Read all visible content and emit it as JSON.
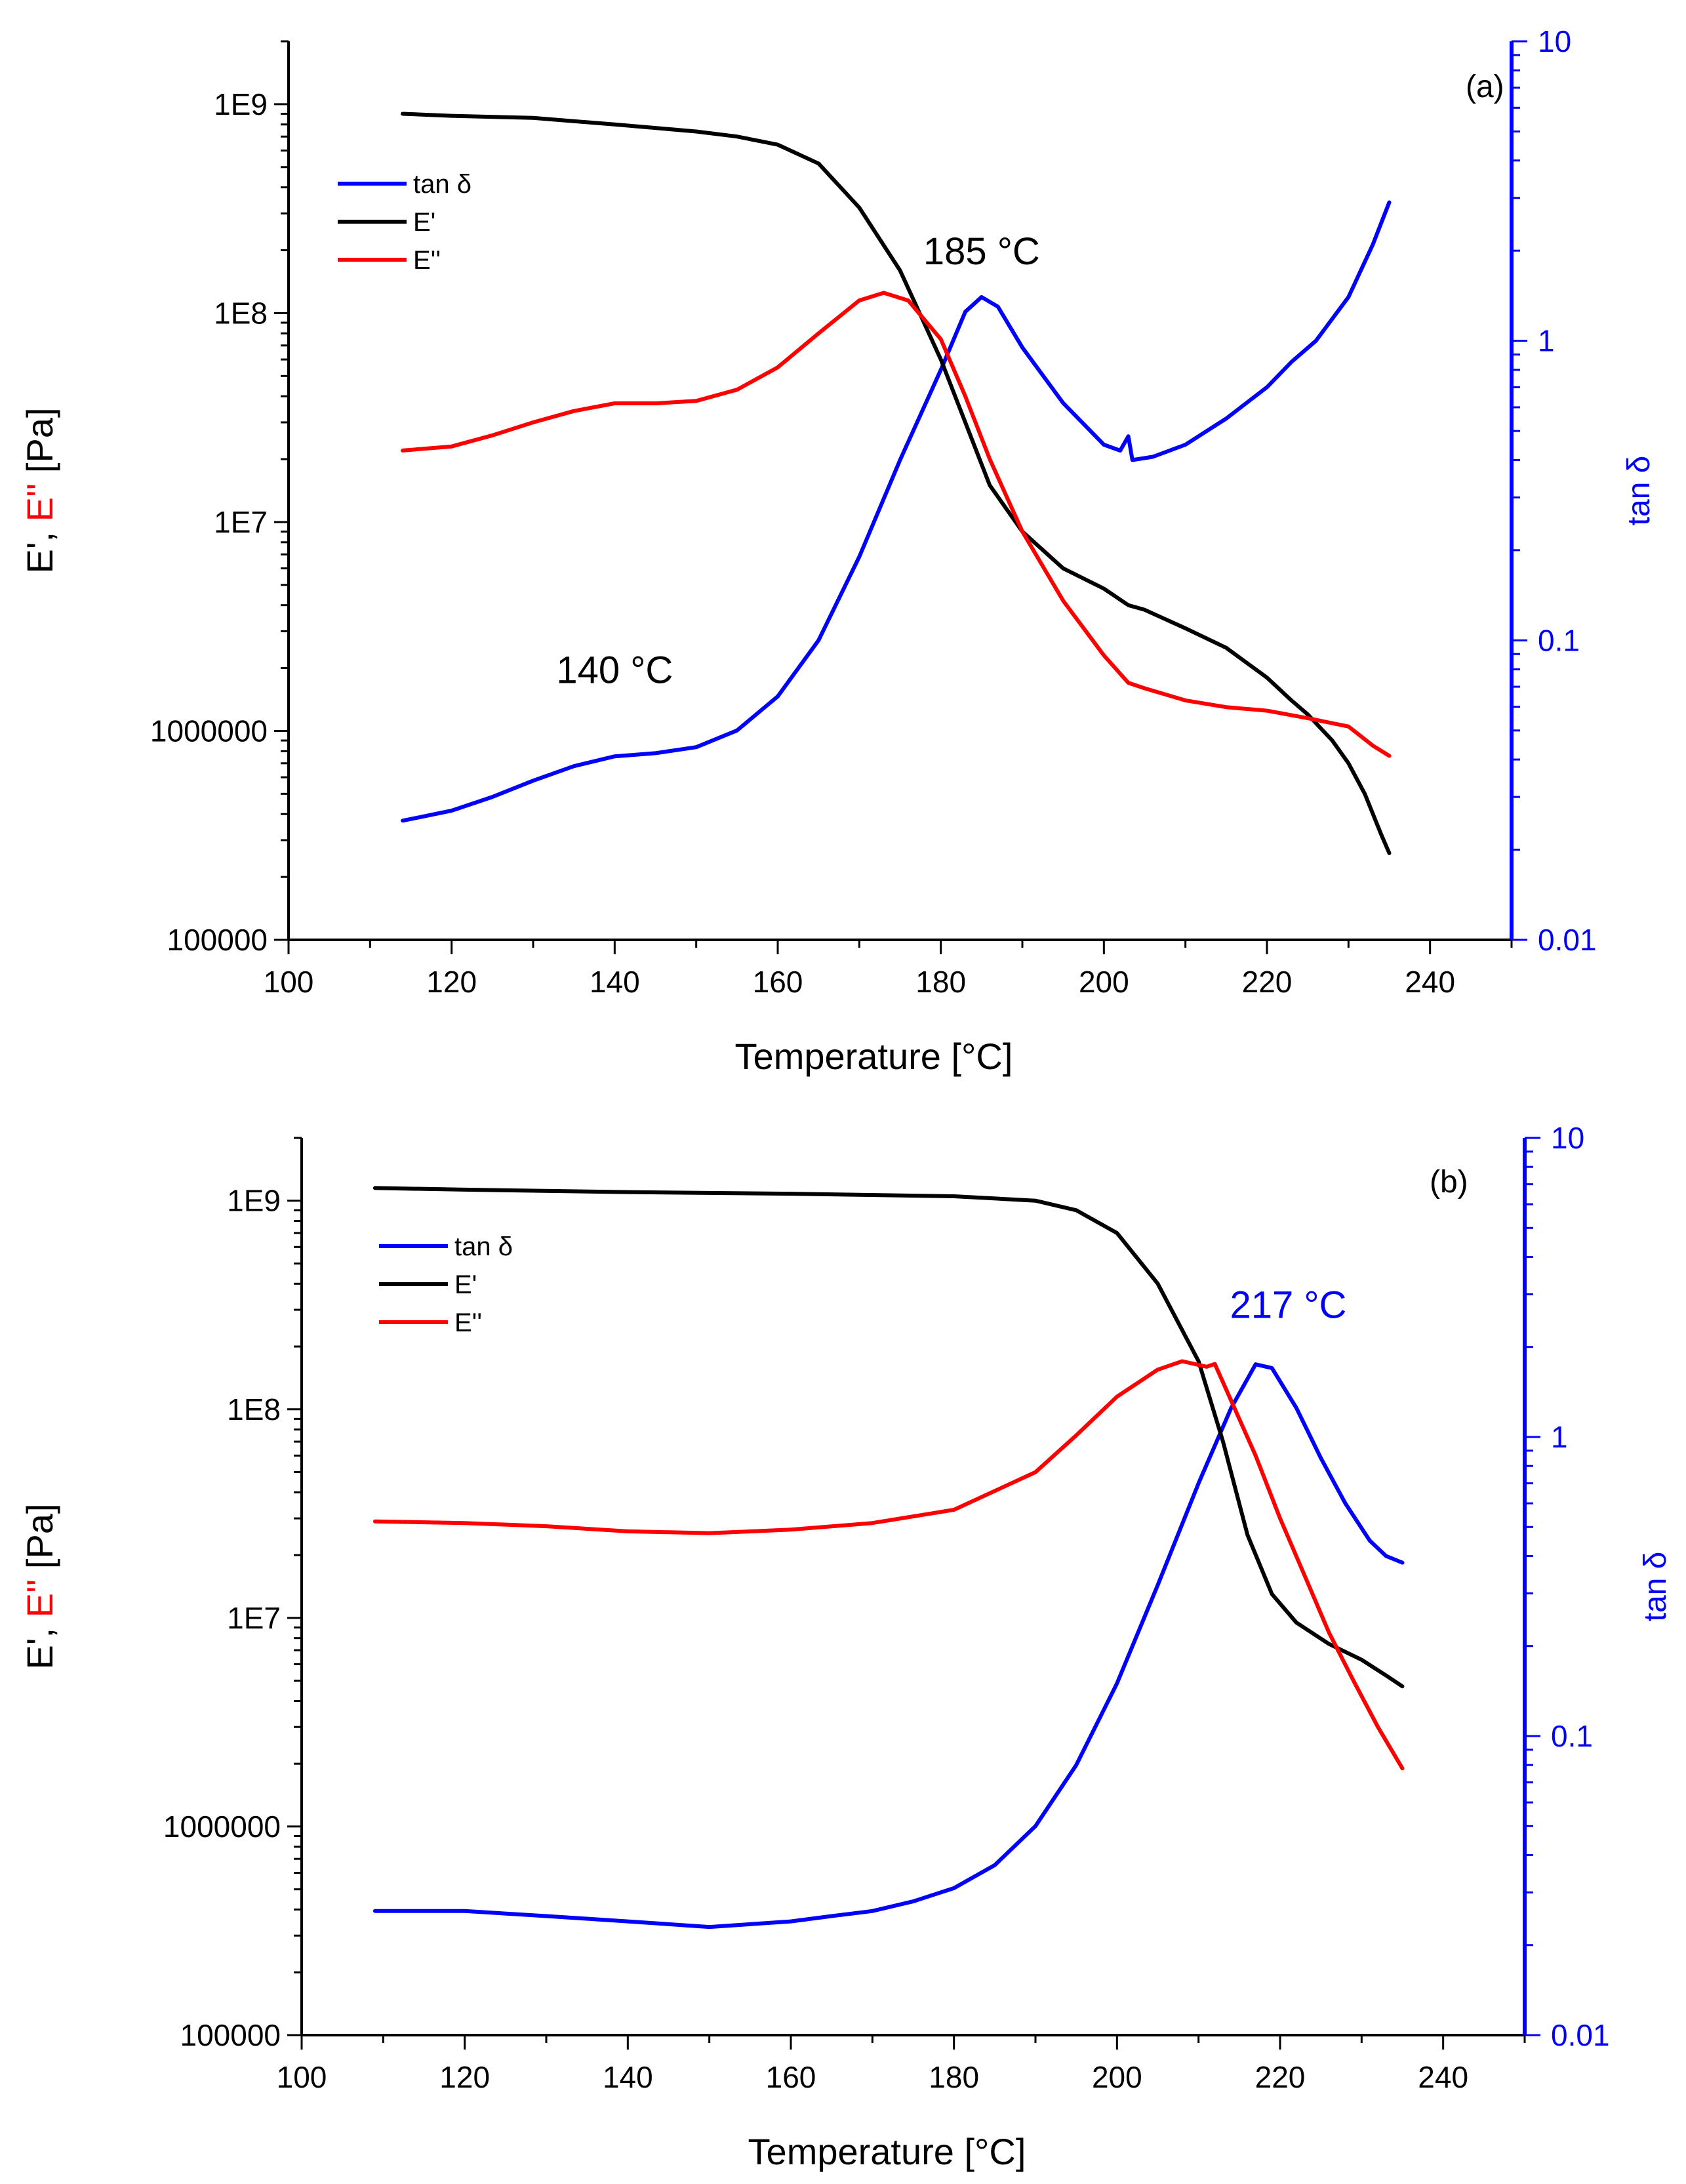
{
  "colors": {
    "tan_delta": "#0000ff",
    "e_storage": "#000000",
    "e_loss": "#ff0000",
    "axis": "#000000",
    "right_axis": "#0000ff"
  },
  "chart_data": [
    {
      "type": "line",
      "panel_label": "(a)",
      "xlabel": "Temperature [°C]",
      "ylabel_parts": [
        "E', ",
        "E''",
        " [Pa]"
      ],
      "ylabel_right": "tan δ",
      "xlim": [
        100,
        250
      ],
      "x_ticks": [
        100,
        120,
        140,
        160,
        180,
        200,
        220,
        240
      ],
      "ylim_left": [
        100000,
        2000000000
      ],
      "y_ticks_left": [
        {
          "v": 100000,
          "label": "100000"
        },
        {
          "v": 1000000,
          "label": "1000000"
        },
        {
          "v": 10000000,
          "label": "1E7"
        },
        {
          "v": 100000000,
          "label": "1E8"
        },
        {
          "v": 1000000000,
          "label": "1E9"
        }
      ],
      "ylim_right": [
        0.01,
        10
      ],
      "y_ticks_right": [
        {
          "v": 0.01,
          "label": "0.01"
        },
        {
          "v": 0.1,
          "label": "0.1"
        },
        {
          "v": 1,
          "label": "1"
        },
        {
          "v": 10,
          "label": "10"
        }
      ],
      "log_scale_y": true,
      "legend": [
        "tan δ",
        "E'",
        "E''"
      ],
      "legend_position": "top-left",
      "annotations": [
        {
          "text": "185 °C",
          "x": 185,
          "y": 1.8,
          "axis": "right",
          "color": "#000000"
        },
        {
          "text": "140 °C",
          "x": 140,
          "y": 0.072,
          "axis": "right",
          "color": "#000000"
        }
      ],
      "series": [
        {
          "name": "tan δ",
          "axis": "right",
          "color": "#0000ff",
          "points": [
            [
              114,
              0.025
            ],
            [
              120,
              0.027
            ],
            [
              125,
              0.03
            ],
            [
              130,
              0.034
            ],
            [
              135,
              0.038
            ],
            [
              140,
              0.041
            ],
            [
              145,
              0.042
            ],
            [
              150,
              0.044
            ],
            [
              155,
              0.05
            ],
            [
              160,
              0.065
            ],
            [
              165,
              0.1
            ],
            [
              170,
              0.19
            ],
            [
              175,
              0.4
            ],
            [
              180,
              0.8
            ],
            [
              183,
              1.25
            ],
            [
              185,
              1.4
            ],
            [
              187,
              1.3
            ],
            [
              190,
              0.95
            ],
            [
              195,
              0.62
            ],
            [
              200,
              0.45
            ],
            [
              202,
              0.43
            ],
            [
              203,
              0.48
            ],
            [
              203.5,
              0.4
            ],
            [
              206,
              0.41
            ],
            [
              210,
              0.45
            ],
            [
              215,
              0.55
            ],
            [
              220,
              0.7
            ],
            [
              223,
              0.85
            ],
            [
              226,
              1.0
            ],
            [
              230,
              1.4
            ],
            [
              233,
              2.1
            ],
            [
              235,
              2.9
            ]
          ]
        },
        {
          "name": "E'",
          "axis": "left",
          "color": "#000000",
          "points": [
            [
              114,
              900000000
            ],
            [
              120,
              880000000
            ],
            [
              130,
              860000000
            ],
            [
              140,
              800000000
            ],
            [
              150,
              740000000
            ],
            [
              155,
              700000000
            ],
            [
              160,
              640000000
            ],
            [
              165,
              520000000
            ],
            [
              170,
              320000000
            ],
            [
              175,
              160000000
            ],
            [
              180,
              60000000
            ],
            [
              183,
              30000000
            ],
            [
              186,
              15000000
            ],
            [
              190,
              9000000
            ],
            [
              195,
              6000000
            ],
            [
              200,
              4800000
            ],
            [
              203,
              4000000
            ],
            [
              205,
              3800000
            ],
            [
              210,
              3100000
            ],
            [
              215,
              2500000
            ],
            [
              220,
              1800000
            ],
            [
              223,
              1400000
            ],
            [
              225,
              1200000
            ],
            [
              228,
              900000
            ],
            [
              230,
              700000
            ],
            [
              232,
              500000
            ],
            [
              234,
              320000
            ],
            [
              235,
              260000
            ]
          ]
        },
        {
          "name": "E''",
          "axis": "left",
          "color": "#ff0000",
          "points": [
            [
              114,
              22000000
            ],
            [
              120,
              23000000
            ],
            [
              125,
              26000000
            ],
            [
              130,
              30000000
            ],
            [
              135,
              34000000
            ],
            [
              140,
              37000000
            ],
            [
              145,
              37000000
            ],
            [
              150,
              38000000
            ],
            [
              155,
              43000000
            ],
            [
              160,
              55000000
            ],
            [
              165,
              80000000
            ],
            [
              170,
              115000000
            ],
            [
              173,
              125000000
            ],
            [
              176,
              115000000
            ],
            [
              180,
              75000000
            ],
            [
              183,
              40000000
            ],
            [
              186,
              20000000
            ],
            [
              190,
              9000000
            ],
            [
              195,
              4200000
            ],
            [
              200,
              2300000
            ],
            [
              203,
              1700000
            ],
            [
              205,
              1600000
            ],
            [
              210,
              1400000
            ],
            [
              215,
              1300000
            ],
            [
              220,
              1250000
            ],
            [
              225,
              1150000
            ],
            [
              230,
              1050000
            ],
            [
              233,
              850000
            ],
            [
              235,
              760000
            ]
          ]
        }
      ]
    },
    {
      "type": "line",
      "panel_label": "(b)",
      "xlabel": "Temperature [°C]",
      "ylabel_parts": [
        "E', ",
        "E''",
        " [Pa]"
      ],
      "ylabel_right": "tan δ",
      "xlim": [
        100,
        250
      ],
      "x_ticks": [
        100,
        120,
        140,
        160,
        180,
        200,
        220,
        240
      ],
      "ylim_left": [
        100000,
        2000000000
      ],
      "y_ticks_left": [
        {
          "v": 100000,
          "label": "100000"
        },
        {
          "v": 1000000,
          "label": "1000000"
        },
        {
          "v": 10000000,
          "label": "1E7"
        },
        {
          "v": 100000000,
          "label": "1E8"
        },
        {
          "v": 1000000000,
          "label": "1E9"
        }
      ],
      "ylim_right": [
        0.01,
        10
      ],
      "y_ticks_right": [
        {
          "v": 0.01,
          "label": "0.01"
        },
        {
          "v": 0.1,
          "label": "0.1"
        },
        {
          "v": 1,
          "label": "1"
        },
        {
          "v": 10,
          "label": "10"
        }
      ],
      "log_scale_y": true,
      "legend": [
        "tan δ",
        "E'",
        "E''"
      ],
      "legend_position": "top-left",
      "annotations": [
        {
          "text": "217 °C",
          "x": 221,
          "y": 2.5,
          "axis": "right",
          "color": "#0000ff"
        }
      ],
      "series": [
        {
          "name": "tan δ",
          "axis": "right",
          "color": "#0000ff",
          "points": [
            [
              109,
              0.026
            ],
            [
              115,
              0.026
            ],
            [
              120,
              0.026
            ],
            [
              130,
              0.025
            ],
            [
              140,
              0.024
            ],
            [
              150,
              0.023
            ],
            [
              160,
              0.024
            ],
            [
              165,
              0.025
            ],
            [
              170,
              0.026
            ],
            [
              175,
              0.028
            ],
            [
              180,
              0.031
            ],
            [
              185,
              0.037
            ],
            [
              190,
              0.05
            ],
            [
              195,
              0.08
            ],
            [
              200,
              0.15
            ],
            [
              205,
              0.32
            ],
            [
              210,
              0.7
            ],
            [
              214,
              1.25
            ],
            [
              217,
              1.75
            ],
            [
              219,
              1.7
            ],
            [
              222,
              1.25
            ],
            [
              225,
              0.85
            ],
            [
              228,
              0.6
            ],
            [
              231,
              0.45
            ],
            [
              233,
              0.4
            ],
            [
              235,
              0.38
            ]
          ]
        },
        {
          "name": "E'",
          "axis": "left",
          "color": "#000000",
          "points": [
            [
              109,
              1150000000
            ],
            [
              120,
              1130000000
            ],
            [
              140,
              1100000000
            ],
            [
              160,
              1080000000
            ],
            [
              180,
              1050000000
            ],
            [
              190,
              1000000000
            ],
            [
              195,
              900000000
            ],
            [
              200,
              700000000
            ],
            [
              205,
              400000000
            ],
            [
              210,
              170000000
            ],
            [
              213,
              70000000
            ],
            [
              216,
              25000000
            ],
            [
              219,
              13000000
            ],
            [
              222,
              9500000
            ],
            [
              226,
              7500000
            ],
            [
              230,
              6300000
            ],
            [
              233,
              5300000
            ],
            [
              235,
              4700000
            ]
          ]
        },
        {
          "name": "E''",
          "axis": "left",
          "color": "#ff0000",
          "points": [
            [
              109,
              29000000
            ],
            [
              120,
              28500000
            ],
            [
              130,
              27500000
            ],
            [
              140,
              26000000
            ],
            [
              150,
              25500000
            ],
            [
              160,
              26500000
            ],
            [
              170,
              28500000
            ],
            [
              180,
              33000000
            ],
            [
              190,
              50000000
            ],
            [
              195,
              75000000
            ],
            [
              200,
              115000000
            ],
            [
              205,
              155000000
            ],
            [
              208,
              170000000
            ],
            [
              211,
              160000000
            ],
            [
              212,
              165000000
            ],
            [
              214,
              110000000
            ],
            [
              217,
              60000000
            ],
            [
              220,
              30000000
            ],
            [
              223,
              16000000
            ],
            [
              226,
              8500000
            ],
            [
              229,
              5000000
            ],
            [
              232,
              3000000
            ],
            [
              235,
              1900000
            ]
          ]
        }
      ]
    }
  ]
}
